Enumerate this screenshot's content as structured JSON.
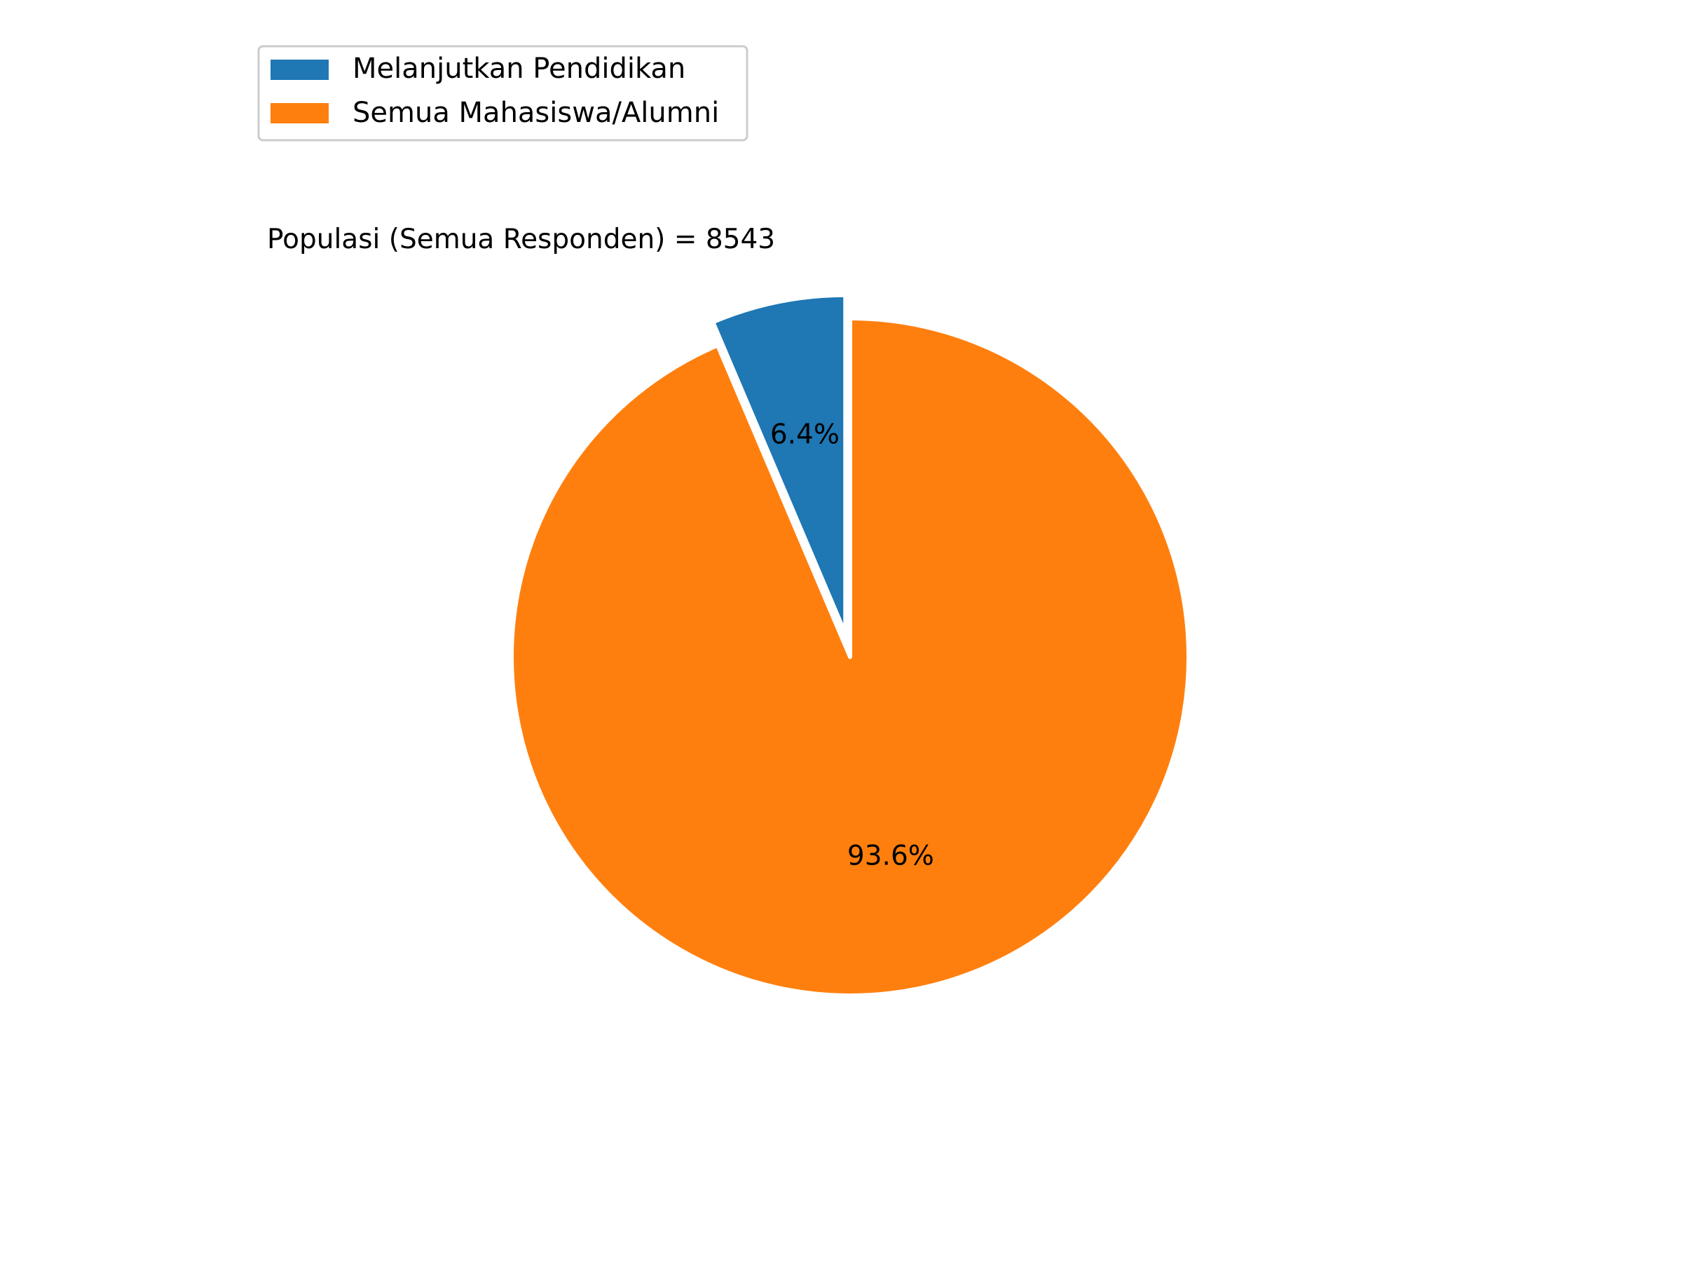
{
  "chart_data": {
    "type": "pie",
    "title": "Populasi (Semua Responden) = 8543",
    "start_angle_deg": 90,
    "direction": "counterclockwise",
    "explode": [
      0.07,
      0
    ],
    "slices": [
      {
        "label": "Melanjutkan Pendidikan",
        "value": 6.4,
        "pct_label": "6.4%",
        "color": "#1f77b4"
      },
      {
        "label": "Semua Mahasiswa/Alumni",
        "value": 93.6,
        "pct_label": "93.6%",
        "color": "#ff7f0e"
      }
    ],
    "legend": {
      "placement": "upper-left",
      "entries": [
        "Melanjutkan Pendidikan",
        "Semua Mahasiswa/Alumni"
      ]
    }
  }
}
